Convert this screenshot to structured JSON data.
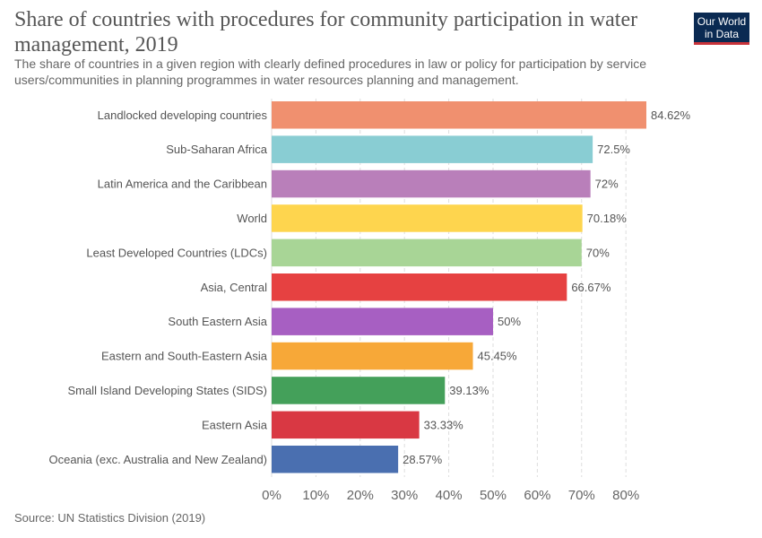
{
  "title": "Share of countries with procedures for community participation in water management, 2019",
  "subtitle": "The share of countries in a given region with clearly defined procedures in law or policy for participation by service users/communities in planning programmes in water resources planning and management.",
  "logo": {
    "line1": "Our World",
    "line2": "in Data"
  },
  "source": "Source: UN Statistics Division (2019)",
  "colors": {
    "logo_bg": "#0a2a52",
    "logo_accent": "#c8333a",
    "grid": "#dddddd"
  },
  "chart_data": {
    "type": "bar",
    "orientation": "horizontal",
    "xlim": [
      0,
      84.62
    ],
    "grid": true,
    "ticks": [
      0,
      10,
      20,
      30,
      40,
      50,
      60,
      70,
      80
    ],
    "tick_labels": [
      "0%",
      "10%",
      "20%",
      "30%",
      "40%",
      "50%",
      "60%",
      "70%",
      "80%"
    ],
    "categories": [
      "Landlocked developing countries",
      "Sub-Saharan Africa",
      "Latin America and the Caribbean",
      "World",
      "Least Developed Countries (LDCs)",
      "Asia, Central",
      "South Eastern Asia",
      "Eastern and South-Eastern Asia",
      "Small Island Developing States (SIDS)",
      "Eastern Asia",
      "Oceania (exc. Australia and New Zealand)"
    ],
    "values": [
      84.62,
      72.5,
      72,
      70.18,
      70,
      66.67,
      50,
      45.45,
      39.13,
      33.33,
      28.57
    ],
    "value_labels": [
      "84.62%",
      "72.5%",
      "72%",
      "70.18%",
      "70%",
      "66.67%",
      "50%",
      "45.45%",
      "39.13%",
      "33.33%",
      "28.57%"
    ],
    "bar_colors": [
      "#f0906f",
      "#89cdd3",
      "#b97fba",
      "#fed54e",
      "#a8d596",
      "#e64141",
      "#a75fc2",
      "#f7a838",
      "#44a05a",
      "#d93843",
      "#4a6fb0"
    ]
  }
}
